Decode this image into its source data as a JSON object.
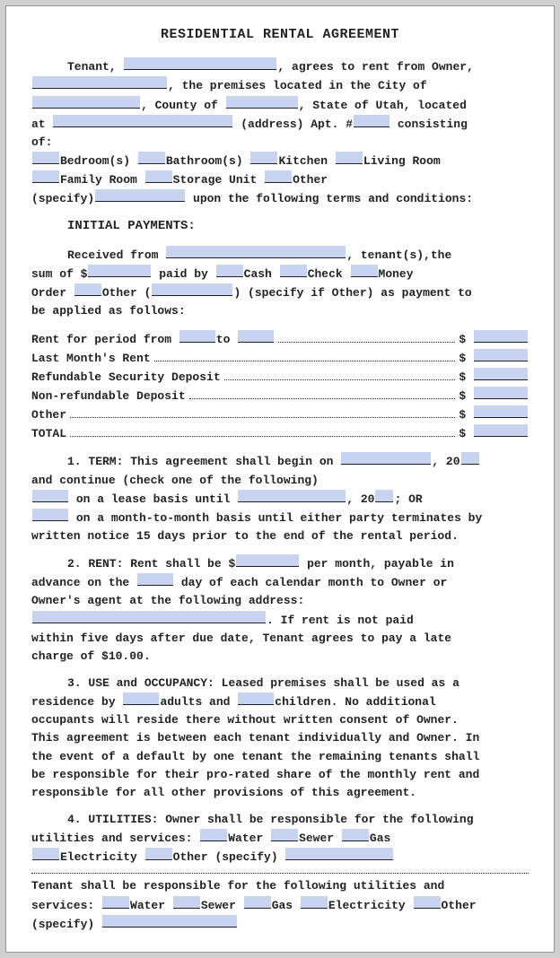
{
  "title": "RESIDENTIAL RENTAL AGREEMENT",
  "intro": {
    "l1a": "Tenant,",
    "l1b": ", agrees to rent from Owner,",
    "l2a": ", the premises located in the City of",
    "l3a": ", County of",
    "l3b": ", State of Utah, located",
    "l4a": "at",
    "l4b": "(address) Apt. #",
    "l4c": "consisting",
    "l5": "of:",
    "rooms": {
      "bedroom": "Bedroom(s)",
      "bathroom": "Bathroom(s)",
      "kitchen": "Kitchen",
      "living": "Living Room",
      "family": "Family Room",
      "storage": "Storage Unit",
      "other": "Other"
    },
    "specify": "(specify)",
    "terms_line": "upon the following terms and conditions:"
  },
  "payments": {
    "heading": "INITIAL PAYMENTS:",
    "l1a": "Received from",
    "l1b": ", tenant(s),the",
    "l2a": "sum of $",
    "l2b": "paid by",
    "cash": "Cash",
    "check": "Check",
    "money": "Money",
    "order": "Order",
    "other": "Other (",
    "other_close": ") (specify if Other) as payment to",
    "applied": "be applied as follows:",
    "items": {
      "rent_period_a": "Rent for period from",
      "rent_period_b": "to",
      "last_month": "Last Month's Rent",
      "refundable": "Refundable Security Deposit",
      "nonrefundable": "Non-refundable Deposit",
      "other_item": "Other",
      "total": "TOTAL"
    },
    "dollar": "$"
  },
  "term1": {
    "head": "1. TERM:",
    "body_a": "This agreement shall begin on",
    "body_b": ", 20",
    "body_c": "and continue (check one of the following)",
    "opt1a": "on a lease basis until",
    "opt1b": ", 20",
    "opt1c": "; OR",
    "opt2": "on a month-to-month basis until either party terminates by",
    "tail": "written notice 15 days prior to the end of the rental period."
  },
  "term2": {
    "head": "2. RENT:",
    "a": "Rent shall be $",
    "b": "per month, payable in",
    "c": "advance on the",
    "d": "day of each calendar month to Owner or",
    "e": "Owner's agent at the following address:",
    "f": ". If rent is not paid",
    "g": "within five days after due date, Tenant agrees to pay a late",
    "h": "charge of $10.00."
  },
  "term3": {
    "head": "3. USE and OCCUPANCY:",
    "a": "Leased premises shall be used as a",
    "b": "residence by",
    "c": "adults and",
    "d": "children. No additional",
    "e": "occupants will reside there without written consent of Owner.",
    "f": "This agreement is between each tenant individually and Owner. In",
    "g": "the event of a default by one tenant the remaining tenants shall",
    "h": "be responsible for their pro-rated share of the monthly rent and",
    "i": "responsible for all other provisions of this agreement."
  },
  "term4": {
    "head": "4. UTILITIES:",
    "a": "Owner shall be responsible for the following",
    "b": "utilities and services:",
    "water": "Water",
    "sewer": "Sewer",
    "gas": "Gas",
    "elec": "Electricity",
    "other": "Other (specify)",
    "tenant_a": "Tenant shall be responsible for the following utilities and",
    "tenant_b": "services:",
    "specify": "(specify)"
  }
}
